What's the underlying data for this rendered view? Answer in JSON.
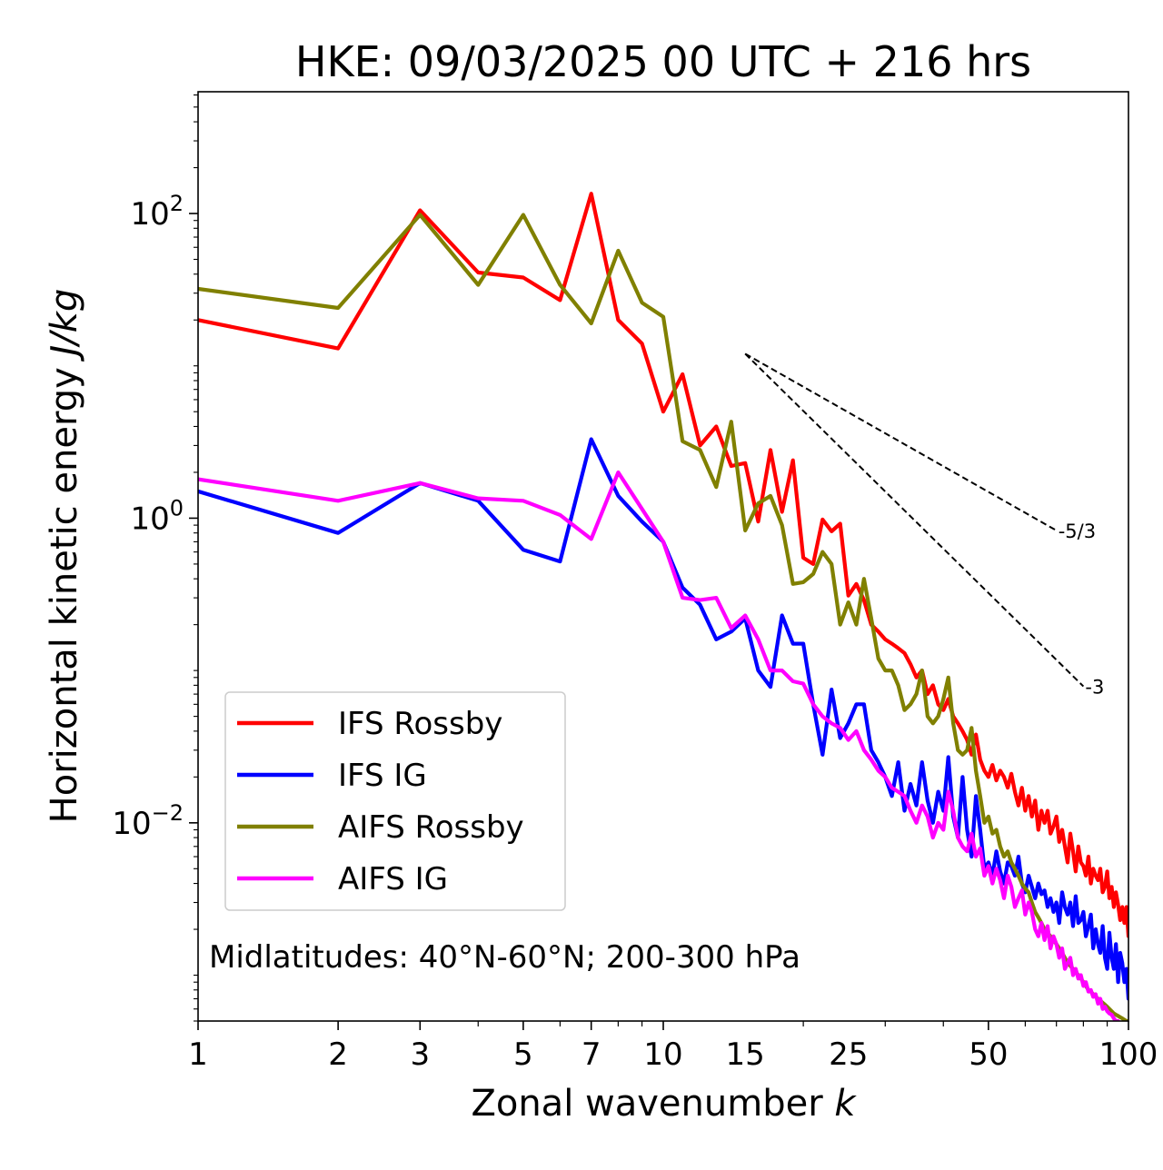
{
  "chart_data": {
    "type": "line",
    "title": "HKE: 09/03/2025 00 UTC + 216 hrs",
    "xlabel": "Zonal wavenumber k",
    "xlabel_parts": {
      "text": "Zonal wavenumber ",
      "var": "k"
    },
    "ylabel": "Horizontal kinetic energy J/kg",
    "ylabel_parts": {
      "text": "Horizontal kinetic energy ",
      "var": "J/kg"
    },
    "xscale": "log",
    "yscale": "log",
    "xlim": [
      1,
      100
    ],
    "ylim": [
      0.0005,
      630
    ],
    "xticks": [
      1,
      2,
      3,
      5,
      7,
      10,
      15,
      25,
      50,
      100
    ],
    "xtick_labels": [
      "1",
      "2",
      "3",
      "5",
      "7",
      "10",
      "15",
      "25",
      "50",
      "100"
    ],
    "yticks": [
      0.01,
      1,
      100
    ],
    "ytick_labels": [
      {
        "base": "10",
        "exp": "−2"
      },
      {
        "base": "10",
        "exp": "0"
      },
      {
        "base": "10",
        "exp": "2"
      }
    ],
    "annotation": "Midlatitudes: 40°N-60°N; 200-300 hPa",
    "legend_position": "lower-left",
    "reference_slopes": [
      {
        "label": "-5/3",
        "x": [
          15,
          70
        ],
        "y": [
          12,
          0.83
        ]
      },
      {
        "label": "-3",
        "x": [
          15,
          80
        ],
        "y": [
          12,
          0.0787
        ]
      }
    ],
    "series": [
      {
        "name": "IFS Rossby",
        "color": "#ff0000",
        "x": [
          1,
          2,
          3,
          4,
          5,
          6,
          7,
          8,
          9,
          10,
          11,
          12,
          13,
          14,
          15,
          16,
          17,
          18,
          19,
          20,
          21,
          22,
          23,
          24,
          25,
          26,
          27,
          28,
          29,
          30,
          31,
          32,
          33,
          34,
          35,
          36,
          37,
          38,
          39,
          40,
          41,
          42,
          43,
          44,
          45,
          46,
          47,
          48,
          49,
          50,
          51,
          52,
          53,
          54,
          55,
          56,
          57,
          58,
          59,
          60,
          61,
          62,
          63,
          64,
          65,
          66,
          67,
          68,
          69,
          70,
          71,
          72,
          73,
          74,
          75,
          76,
          77,
          78,
          79,
          80,
          81,
          82,
          83,
          84,
          85,
          86,
          87,
          88,
          89,
          90,
          91,
          92,
          93,
          94,
          95,
          96,
          97,
          98,
          99,
          100
        ],
        "y": [
          20,
          13,
          105,
          41,
          38,
          27,
          135,
          20,
          14,
          5,
          8.8,
          3,
          4,
          2.2,
          2.3,
          0.95,
          2.8,
          1.1,
          2.4,
          0.55,
          0.5,
          0.98,
          0.82,
          0.92,
          0.31,
          0.37,
          0.29,
          0.2,
          0.18,
          0.16,
          0.15,
          0.14,
          0.13,
          0.11,
          0.09,
          0.1,
          0.07,
          0.08,
          0.06,
          0.055,
          0.065,
          0.05,
          0.045,
          0.04,
          0.035,
          0.028,
          0.038,
          0.026,
          0.022,
          0.02,
          0.024,
          0.019,
          0.022,
          0.02,
          0.017,
          0.021,
          0.016,
          0.013,
          0.017,
          0.012,
          0.015,
          0.011,
          0.014,
          0.009,
          0.012,
          0.01,
          0.012,
          0.0085,
          0.0095,
          0.011,
          0.0075,
          0.009,
          0.007,
          0.0055,
          0.0085,
          0.0065,
          0.0048,
          0.007,
          0.0055,
          0.0052,
          0.0045,
          0.006,
          0.004,
          0.005,
          0.0045,
          0.0042,
          0.005,
          0.0035,
          0.0038,
          0.0048,
          0.0032,
          0.0038,
          0.0028,
          0.0035,
          0.0029,
          0.0023,
          0.0028,
          0.0022,
          0.0028,
          0.0018
        ]
      },
      {
        "name": "IFS IG",
        "color": "#0000ff",
        "x": [
          1,
          2,
          3,
          4,
          5,
          6,
          7,
          8,
          9,
          10,
          11,
          12,
          13,
          14,
          15,
          16,
          17,
          18,
          19,
          20,
          21,
          22,
          23,
          24,
          25,
          26,
          27,
          28,
          29,
          30,
          31,
          32,
          33,
          34,
          35,
          36,
          37,
          38,
          39,
          40,
          41,
          42,
          43,
          44,
          45,
          46,
          47,
          48,
          49,
          50,
          51,
          52,
          53,
          54,
          55,
          56,
          57,
          58,
          59,
          60,
          61,
          62,
          63,
          64,
          65,
          66,
          67,
          68,
          69,
          70,
          71,
          72,
          73,
          74,
          75,
          76,
          77,
          78,
          79,
          80,
          81,
          82,
          83,
          84,
          85,
          86,
          87,
          88,
          89,
          90,
          91,
          92,
          93,
          94,
          95,
          96,
          97,
          98,
          99,
          100
        ],
        "y": [
          1.5,
          0.8,
          1.7,
          1.3,
          0.62,
          0.52,
          3.3,
          1.4,
          0.95,
          0.7,
          0.35,
          0.27,
          0.16,
          0.18,
          0.22,
          0.1,
          0.078,
          0.23,
          0.15,
          0.15,
          0.06,
          0.028,
          0.075,
          0.036,
          0.045,
          0.06,
          0.06,
          0.03,
          0.025,
          0.02,
          0.015,
          0.025,
          0.012,
          0.018,
          0.013,
          0.025,
          0.014,
          0.01,
          0.016,
          0.012,
          0.027,
          0.011,
          0.008,
          0.02,
          0.009,
          0.006,
          0.015,
          0.009,
          0.005,
          0.0055,
          0.0045,
          0.0065,
          0.0048,
          0.004,
          0.0055,
          0.0052,
          0.0045,
          0.006,
          0.004,
          0.0035,
          0.0045,
          0.0038,
          0.0032,
          0.004,
          0.0034,
          0.0036,
          0.0028,
          0.0032,
          0.0026,
          0.003,
          0.0022,
          0.0035,
          0.0028,
          0.0025,
          0.003,
          0.0021,
          0.0033,
          0.0022,
          0.0023,
          0.0026,
          0.0018,
          0.0021,
          0.0025,
          0.0015,
          0.002,
          0.0016,
          0.0014,
          0.0021,
          0.0013,
          0.0011,
          0.0019,
          0.0013,
          0.0011,
          0.0016,
          0.0009,
          0.0014,
          0.0012,
          0.0009,
          0.0011,
          0.0007
        ]
      },
      {
        "name": "AIFS Rossby",
        "color": "#808000",
        "x": [
          1,
          2,
          3,
          4,
          5,
          6,
          7,
          8,
          9,
          10,
          11,
          12,
          13,
          14,
          15,
          16,
          17,
          18,
          19,
          20,
          21,
          22,
          23,
          24,
          25,
          26,
          27,
          28,
          29,
          30,
          31,
          32,
          33,
          34,
          35,
          36,
          37,
          38,
          39,
          40,
          41,
          42,
          43,
          44,
          45,
          46,
          47,
          48,
          49,
          50,
          51,
          52,
          53,
          54,
          55,
          56,
          57,
          58,
          59,
          60,
          61,
          62,
          63,
          64,
          65,
          66,
          67,
          68,
          69,
          70,
          71,
          72,
          73,
          74,
          75,
          76,
          77,
          78,
          79,
          80,
          81,
          82,
          83,
          84,
          85,
          86,
          87,
          88,
          89,
          90,
          91,
          92,
          93,
          94,
          95,
          96,
          97,
          98,
          99,
          100
        ],
        "y": [
          32,
          24,
          98,
          34,
          98,
          34,
          19,
          57,
          26,
          21,
          3.2,
          2.8,
          1.6,
          4.3,
          0.83,
          1.25,
          1.4,
          0.9,
          0.37,
          0.38,
          0.43,
          0.6,
          0.5,
          0.2,
          0.28,
          0.2,
          0.4,
          0.22,
          0.12,
          0.1,
          0.1,
          0.08,
          0.055,
          0.06,
          0.07,
          0.1,
          0.05,
          0.045,
          0.05,
          0.065,
          0.09,
          0.045,
          0.03,
          0.028,
          0.03,
          0.042,
          0.022,
          0.015,
          0.01,
          0.011,
          0.0085,
          0.009,
          0.007,
          0.006,
          0.0065,
          0.0055,
          0.005,
          0.0045,
          0.004,
          0.0037,
          0.0035,
          0.003,
          0.0026,
          0.0024,
          0.0022,
          0.002,
          0.0019,
          0.0018,
          0.0017,
          0.0016,
          0.0015,
          0.0014,
          0.0013,
          0.0012,
          0.00115,
          0.0011,
          0.00105,
          0.001,
          0.00095,
          0.0009,
          0.00085,
          0.0008,
          0.00078,
          0.00075,
          0.00072,
          0.0007,
          0.00068,
          0.00066,
          0.00064,
          0.00062,
          0.0006,
          0.00058,
          0.00056,
          0.00055,
          0.00054,
          0.00053,
          0.00052,
          0.00051,
          0.0005,
          0.0005
        ]
      },
      {
        "name": "AIFS IG",
        "color": "#ff00ff",
        "x": [
          1,
          2,
          3,
          4,
          5,
          6,
          7,
          8,
          9,
          10,
          11,
          12,
          13,
          14,
          15,
          16,
          17,
          18,
          19,
          20,
          21,
          22,
          23,
          24,
          25,
          26,
          27,
          28,
          29,
          30,
          31,
          32,
          33,
          34,
          35,
          36,
          37,
          38,
          39,
          40,
          41,
          42,
          43,
          44,
          45,
          46,
          47,
          48,
          49,
          50,
          51,
          52,
          53,
          54,
          55,
          56,
          57,
          58,
          59,
          60,
          61,
          62,
          63,
          64,
          65,
          66,
          67,
          68,
          69,
          70,
          71,
          72,
          73,
          74,
          75,
          76,
          77,
          78,
          79,
          80,
          81,
          82,
          83,
          84,
          85,
          86,
          87,
          88,
          89,
          90,
          91,
          92,
          93,
          94,
          95,
          96,
          97,
          98,
          99,
          100
        ],
        "y": [
          1.8,
          1.3,
          1.7,
          1.35,
          1.3,
          1.05,
          0.73,
          2.0,
          1.15,
          0.7,
          0.3,
          0.29,
          0.3,
          0.19,
          0.23,
          0.16,
          0.1,
          0.1,
          0.085,
          0.082,
          0.06,
          0.05,
          0.045,
          0.042,
          0.035,
          0.04,
          0.03,
          0.026,
          0.022,
          0.02,
          0.017,
          0.016,
          0.015,
          0.012,
          0.01,
          0.013,
          0.011,
          0.008,
          0.01,
          0.009,
          0.016,
          0.012,
          0.008,
          0.007,
          0.0065,
          0.0085,
          0.006,
          0.0068,
          0.0045,
          0.0052,
          0.004,
          0.005,
          0.0042,
          0.0032,
          0.0045,
          0.0038,
          0.0028,
          0.0032,
          0.0036,
          0.0025,
          0.003,
          0.0026,
          0.002,
          0.0018,
          0.0022,
          0.0017,
          0.0021,
          0.0015,
          0.0018,
          0.0016,
          0.0013,
          0.0015,
          0.0011,
          0.0012,
          0.0013,
          0.001,
          0.0011,
          0.00095,
          0.001,
          0.00085,
          0.0009,
          0.00078,
          0.0008,
          0.00072,
          0.00075,
          0.00065,
          0.0007,
          0.0006,
          0.00062,
          0.00058,
          0.00056,
          0.00055,
          0.00052,
          0.0005,
          0.0005,
          0.00048,
          0.00047,
          0.00046,
          0.00046,
          0.00046
        ]
      }
    ]
  }
}
